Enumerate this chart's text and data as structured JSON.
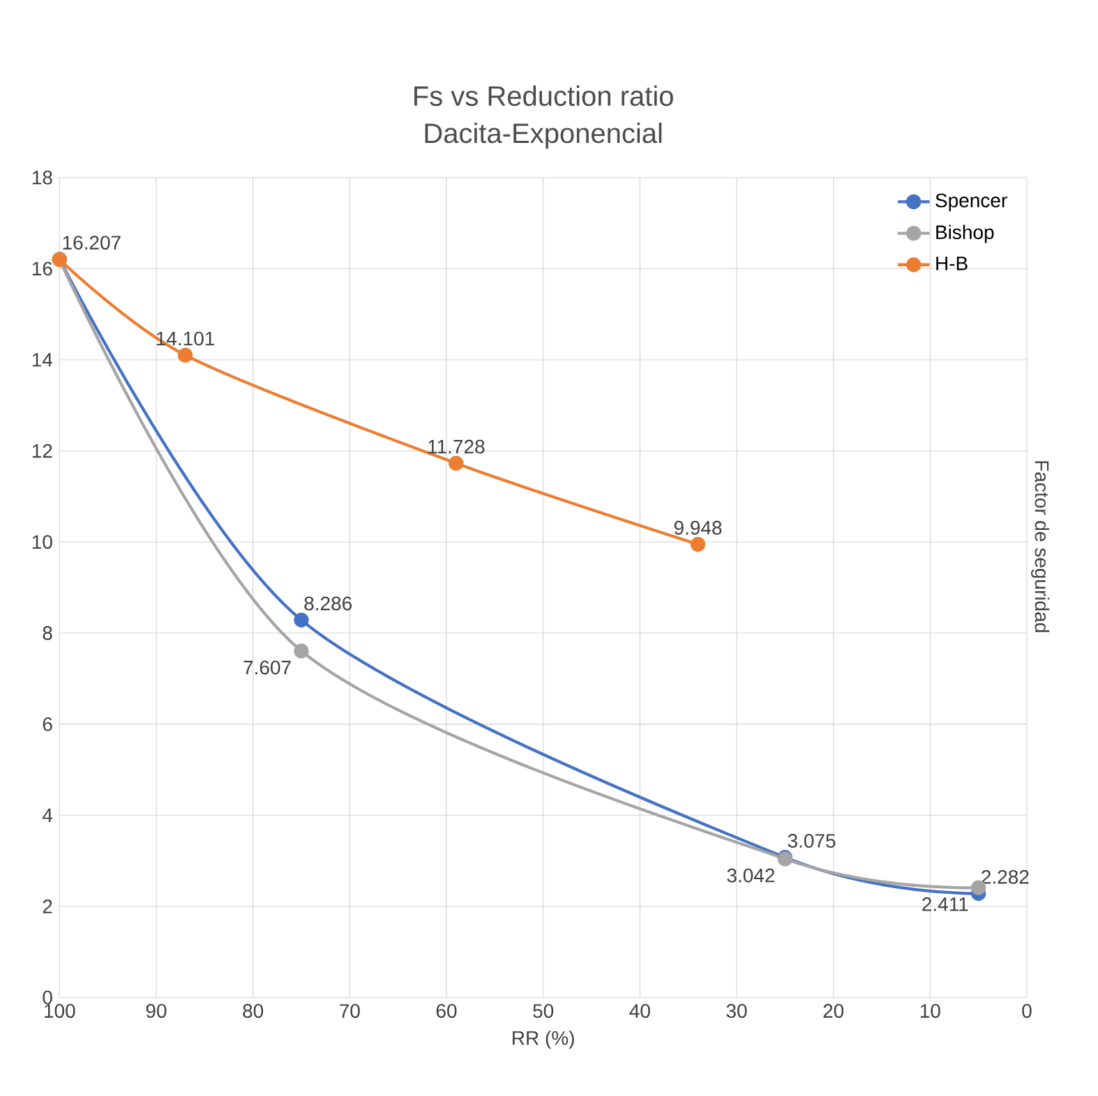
{
  "chart_data": {
    "type": "line",
    "title": "Fs vs Reduction ratio",
    "subtitle": "Dacita-Exponencial",
    "xlabel": "RR (%)",
    "ylabel": "Factor de seguridad",
    "xlim": [
      100,
      0
    ],
    "ylim": [
      0,
      18
    ],
    "xticks": [
      100,
      90,
      80,
      70,
      60,
      50,
      40,
      30,
      20,
      10,
      0
    ],
    "yticks": [
      0,
      2,
      4,
      6,
      8,
      10,
      12,
      14,
      16,
      18
    ],
    "grid": true,
    "legend": "top right",
    "marker": "circle",
    "line_style": "solid",
    "series": [
      {
        "name": "Spencer",
        "color": "#4472c4",
        "x": [
          100,
          75,
          25,
          5
        ],
        "values": [
          16.207,
          8.286,
          3.075,
          2.282
        ],
        "value_labels": [
          "16.207",
          "8.286",
          "3.075",
          "2.282"
        ]
      },
      {
        "name": "Bishop",
        "color": "#a5a5a5",
        "x": [
          100,
          75,
          25,
          5
        ],
        "values": [
          16.2,
          7.607,
          3.042,
          2.411
        ],
        "value_labels": [
          null,
          "7.607",
          "3.042",
          "2.411"
        ]
      },
      {
        "name": "H-B",
        "color": "#ed7d31",
        "x": [
          100,
          87,
          59,
          34
        ],
        "values": [
          16.2,
          14.101,
          11.728,
          9.948
        ],
        "value_labels": [
          null,
          "14.101",
          "11.728",
          "9.948"
        ]
      }
    ]
  }
}
